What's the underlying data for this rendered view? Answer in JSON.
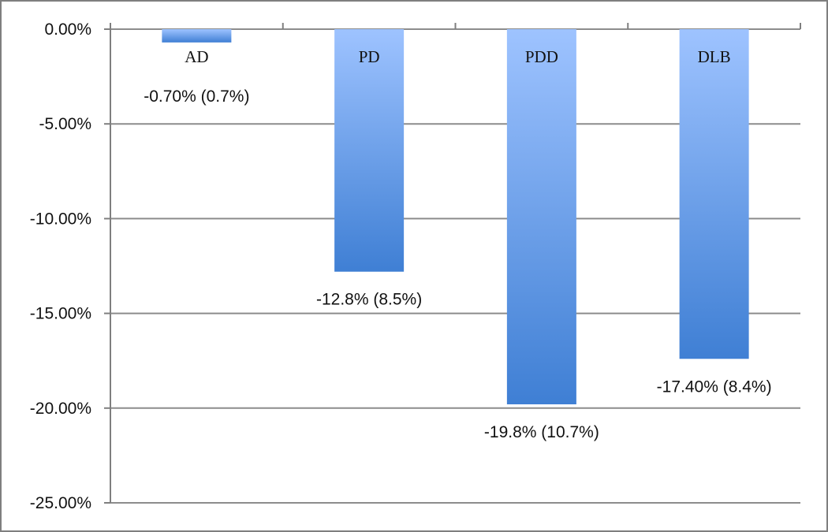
{
  "chart_data": {
    "type": "bar",
    "title": "",
    "xlabel": "",
    "ylabel": "",
    "categories": [
      "AD",
      "PD",
      "PDD",
      "DLB"
    ],
    "values": [
      -0.7,
      -12.8,
      -19.8,
      -17.4
    ],
    "data_labels": [
      "-0.70% (0.7%)",
      "-12.8% (8.5%)",
      "-19.8% (10.7%)",
      "-17.40% (8.4%)"
    ],
    "ylim": [
      -25,
      0
    ],
    "yticks": [
      0,
      -5,
      -10,
      -15,
      -20,
      -25
    ],
    "ytick_labels": [
      "0.00%",
      "-5.00%",
      "-10.00%",
      "-15.00%",
      "-20.00%",
      "-25.00%"
    ],
    "grid": true,
    "legend": "none",
    "colors": {
      "bar_top": "#9ec3ff",
      "bar_bottom": "#3f7fd4",
      "grid": "#8c8c8c",
      "axis": "#7f7f7f"
    }
  }
}
